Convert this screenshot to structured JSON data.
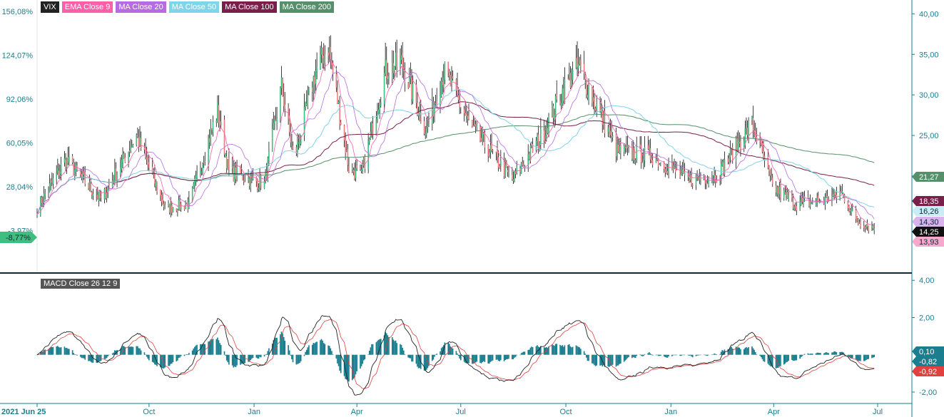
{
  "legend": {
    "items": [
      {
        "label": "VIX",
        "color": "#222222"
      },
      {
        "label": "EMA Close 9",
        "color": "#ff5fa8"
      },
      {
        "label": "MA Close 20",
        "color": "#b66be0"
      },
      {
        "label": "MA Close 50",
        "color": "#7fd3ea"
      },
      {
        "label": "MA Close 100",
        "color": "#7a1f4a"
      },
      {
        "label": "MA Close 200",
        "color": "#55906a"
      }
    ],
    "macd_label": "MACD Close 26 12 9",
    "macd_color": "#555555"
  },
  "colors": {
    "up_candle": "#3fbf7f",
    "down_candle": "#f08080",
    "wick": "#111111",
    "axis": "#1a7e8f",
    "macd_hist": "#1a7e8f",
    "macd_line": "#222222",
    "signal_line": "#e04040",
    "divider": "#0b2a3a"
  },
  "chart_data": [
    {
      "type": "candlestick",
      "title": "VIX",
      "x": [
        "2021 Jun 25",
        "Oct",
        "Jan",
        "Apr",
        "Jul",
        "Oct",
        "Jan",
        "Apr",
        "Jul"
      ],
      "ylim_right": [
        9,
        41
      ],
      "y_ticks_right": [
        "40,00",
        "35,00",
        "30,00",
        "25,00",
        "20,00"
      ],
      "y_ticks_left": [
        "156,08%",
        "124,07%",
        "92,06%",
        "60,05%",
        "28,04%",
        "-3,97%"
      ],
      "left_marker": "-8,77%",
      "close_path": [
        [
          "2021-06-25",
          16.0
        ],
        [
          "2021-07-20",
          22.0
        ],
        [
          "2021-08-20",
          17.0
        ],
        [
          "2021-09-20",
          25.0
        ],
        [
          "2021-10-15",
          16.0
        ],
        [
          "2021-11-05",
          16.5
        ],
        [
          "2021-11-30",
          28.0
        ],
        [
          "2021-12-10",
          20.5
        ],
        [
          "2022-01-10",
          19.0
        ],
        [
          "2022-01-25",
          31.0
        ],
        [
          "2022-02-05",
          22.0
        ],
        [
          "2022-02-24",
          33.0
        ],
        [
          "2022-03-07",
          36.0
        ],
        [
          "2022-03-25",
          21.0
        ],
        [
          "2022-04-05",
          20.0
        ],
        [
          "2022-04-26",
          33.0
        ],
        [
          "2022-05-10",
          34.0
        ],
        [
          "2022-06-01",
          25.5
        ],
        [
          "2022-06-16",
          33.0
        ],
        [
          "2022-07-10",
          26.0
        ],
        [
          "2022-08-15",
          19.5
        ],
        [
          "2022-09-10",
          25.0
        ],
        [
          "2022-09-30",
          31.0
        ],
        [
          "2022-10-12",
          33.5
        ],
        [
          "2022-11-15",
          23.0
        ],
        [
          "2022-12-15",
          22.5
        ],
        [
          "2023-01-15",
          19.5
        ],
        [
          "2023-02-10",
          20.0
        ],
        [
          "2023-03-13",
          26.5
        ],
        [
          "2023-03-31",
          18.7
        ],
        [
          "2023-04-20",
          16.5
        ],
        [
          "2023-05-15",
          17.0
        ],
        [
          "2023-05-31",
          17.9
        ],
        [
          "2023-06-12",
          14.5
        ],
        [
          "2023-06-28",
          13.6
        ]
      ],
      "last_values": [
        {
          "label": "21,27",
          "color": "#55906a"
        },
        {
          "label": "18,35",
          "color": "#7a1f4a"
        },
        {
          "label": "16,26",
          "color": "#c9ecf5"
        },
        {
          "label": "14,30",
          "color": "#d8b3ec"
        },
        {
          "label": "14,25",
          "color": "#111111"
        },
        {
          "label": "13,93",
          "color": "#f7a8cc"
        }
      ]
    },
    {
      "type": "macd",
      "title": "MACD Close 26 12 9",
      "ylim": [
        -2.5,
        4.2
      ],
      "y_ticks": [
        "4,00",
        "2,00",
        "-2,00"
      ],
      "last_values": [
        {
          "label": "0,10",
          "color": "#1a7e8f"
        },
        {
          "label": "-0,82",
          "color": "#1a7e8f"
        },
        {
          "label": "-0,92",
          "color": "#e04040"
        }
      ]
    }
  ]
}
